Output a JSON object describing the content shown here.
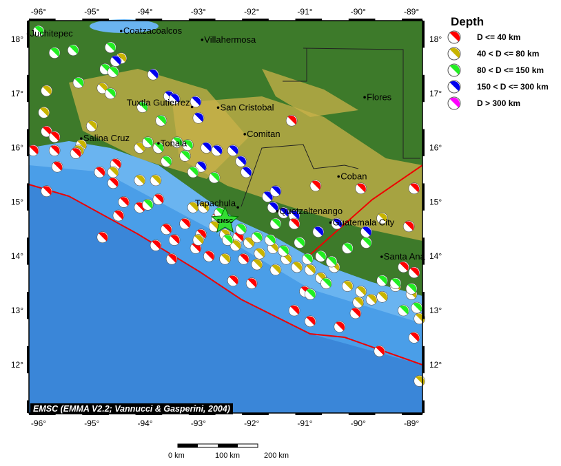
{
  "legend": {
    "title": "Depth",
    "items": [
      {
        "label": "D <= 40 km",
        "color": "#ff0000"
      },
      {
        "label": "40 < D <= 80 km",
        "color": "#c8b400"
      },
      {
        "label": "80 < D <= 150 km",
        "color": "#22ee22"
      },
      {
        "label": "150 < D <= 300 km",
        "color": "#0000ee"
      },
      {
        "label": "D > 300 km",
        "color": "#ff00ff"
      }
    ]
  },
  "credit": "EMSC (EMMA V2.2; Vannucci & Gasperini, 2004)",
  "star_label": "EMSC",
  "lon_ticks": [
    "-96°",
    "-95°",
    "-94°",
    "-93°",
    "-92°",
    "-91°",
    "-90°",
    "-89°"
  ],
  "lat_ticks": [
    "18°",
    "17°",
    "16°",
    "15°",
    "14°",
    "13°",
    "12°"
  ],
  "cities": [
    {
      "name": "Juchitepec",
      "lon": -96.2,
      "lat": 18.1
    },
    {
      "name": "Coatzacoalcos",
      "lon": -94.45,
      "lat": 18.15
    },
    {
      "name": "Villahermosa",
      "lon": -92.93,
      "lat": 17.99
    },
    {
      "name": "Flores",
      "lon": -89.88,
      "lat": 16.93
    },
    {
      "name": "Tuxtla Gutierrez",
      "lon": -93.12,
      "lat": 16.75
    },
    {
      "name": "San Cristobal",
      "lon": -92.63,
      "lat": 16.74
    },
    {
      "name": "Comitan",
      "lon": -92.13,
      "lat": 16.25
    },
    {
      "name": "Salina Cruz",
      "lon": -95.2,
      "lat": 16.17
    },
    {
      "name": "Tonala",
      "lon": -93.75,
      "lat": 16.08
    },
    {
      "name": "Coban",
      "lon": -90.37,
      "lat": 15.47
    },
    {
      "name": "Tapachula",
      "lon": -92.26,
      "lat": 14.9
    },
    {
      "name": "Quetzaltenango",
      "lon": -91.52,
      "lat": 14.83
    },
    {
      "name": "Guatemala City",
      "lon": -90.52,
      "lat": 14.62
    },
    {
      "name": "Santa Ana",
      "lon": -89.56,
      "lat": 13.99
    }
  ],
  "scale_bar": {
    "labels": [
      "0 km",
      "100 km",
      "200 km"
    ]
  },
  "events": [
    [
      -96,
      18.15,
      2
    ],
    [
      -95.7,
      17.75,
      2
    ],
    [
      -95.35,
      17.8,
      2
    ],
    [
      -94.65,
      17.85,
      2
    ],
    [
      -94.45,
      17.65,
      1
    ],
    [
      -94.55,
      17.6,
      3
    ],
    [
      -93.85,
      17.35,
      3
    ],
    [
      -94.75,
      17.45,
      2
    ],
    [
      -94.6,
      17.4,
      2
    ],
    [
      -95.25,
      17.2,
      2
    ],
    [
      -94.8,
      17.1,
      1
    ],
    [
      -94.65,
      17.0,
      2
    ],
    [
      -95.85,
      17.05,
      1
    ],
    [
      -93.55,
      16.95,
      3
    ],
    [
      -93.45,
      16.9,
      3
    ],
    [
      -93.05,
      16.85,
      3
    ],
    [
      -94.05,
      16.75,
      2
    ],
    [
      -95.9,
      16.65,
      1
    ],
    [
      -93.0,
      16.55,
      3
    ],
    [
      -93.7,
      16.5,
      2
    ],
    [
      -95.0,
      16.4,
      1
    ],
    [
      -91.25,
      16.5,
      0
    ],
    [
      -95.85,
      16.3,
      0
    ],
    [
      -95.7,
      16.2,
      0
    ],
    [
      -95.2,
      16.05,
      1
    ],
    [
      -95.25,
      15.95,
      1
    ],
    [
      -94.1,
      16.0,
      1
    ],
    [
      -93.95,
      16.1,
      2
    ],
    [
      -93.75,
      16.0,
      2
    ],
    [
      -93.4,
      16.1,
      2
    ],
    [
      -93.2,
      16.05,
      2
    ],
    [
      -92.85,
      16.0,
      3
    ],
    [
      -92.65,
      15.95,
      3
    ],
    [
      -92.35,
      15.95,
      3
    ],
    [
      -92.2,
      15.75,
      3
    ],
    [
      -93.25,
      15.85,
      2
    ],
    [
      -93.6,
      15.75,
      2
    ],
    [
      -92.95,
      15.65,
      3
    ],
    [
      -93.1,
      15.55,
      2
    ],
    [
      -92.7,
      15.45,
      2
    ],
    [
      -92.1,
      15.55,
      3
    ],
    [
      -93.8,
      15.4,
      1
    ],
    [
      -96.1,
      15.95,
      0
    ],
    [
      -95.7,
      15.95,
      0
    ],
    [
      -95.3,
      15.9,
      0
    ],
    [
      -95.65,
      15.65,
      0
    ],
    [
      -94.85,
      15.55,
      0
    ],
    [
      -94.55,
      15.7,
      0
    ],
    [
      -94.6,
      15.35,
      0
    ],
    [
      -95.85,
      15.2,
      0
    ],
    [
      -94.6,
      15.55,
      1
    ],
    [
      -94.1,
      15.4,
      1
    ],
    [
      -91.7,
      15.1,
      3
    ],
    [
      -91.55,
      15.2,
      3
    ],
    [
      -91.6,
      14.9,
      3
    ],
    [
      -91.4,
      14.8,
      3
    ],
    [
      -91.2,
      14.75,
      3
    ],
    [
      -90.75,
      14.45,
      3
    ],
    [
      -90.4,
      14.6,
      3
    ],
    [
      -89.85,
      14.45,
      3
    ],
    [
      -89.55,
      14.7,
      1
    ],
    [
      -90.8,
      15.3,
      0
    ],
    [
      -89.95,
      15.25,
      0
    ],
    [
      -88.95,
      15.25,
      0
    ],
    [
      -89.05,
      14.55,
      0
    ],
    [
      -94.4,
      15.0,
      0
    ],
    [
      -94.1,
      14.9,
      0
    ],
    [
      -93.75,
      15.05,
      0
    ],
    [
      -93.6,
      14.5,
      0
    ],
    [
      -93.25,
      14.6,
      0
    ],
    [
      -92.95,
      14.4,
      0
    ],
    [
      -92.65,
      14.7,
      0
    ],
    [
      -93.45,
      14.3,
      0
    ],
    [
      -93.05,
      14.15,
      0
    ],
    [
      -92.8,
      14.0,
      0
    ],
    [
      -93.8,
      14.2,
      0
    ],
    [
      -94.5,
      14.75,
      0
    ],
    [
      -94.8,
      14.35,
      0
    ],
    [
      -93.5,
      13.95,
      0
    ],
    [
      -92.25,
      14.35,
      0
    ],
    [
      -92.15,
      13.95,
      0
    ],
    [
      -92.35,
      13.55,
      0
    ],
    [
      -92.0,
      13.5,
      0
    ],
    [
      -91.2,
      14.6,
      0
    ],
    [
      -91.2,
      13.0,
      0
    ],
    [
      -90.9,
      12.8,
      0
    ],
    [
      -90.35,
      12.7,
      0
    ],
    [
      -89.6,
      12.25,
      0
    ],
    [
      -88.95,
      12.5,
      0
    ],
    [
      -89.15,
      13.8,
      0
    ],
    [
      -88.95,
      13.7,
      0
    ],
    [
      -90.05,
      12.95,
      0
    ],
    [
      -91.0,
      13.35,
      0
    ],
    [
      -93.1,
      14.9,
      1
    ],
    [
      -92.9,
      14.9,
      1
    ],
    [
      -92.7,
      14.55,
      1
    ],
    [
      -92.5,
      14.4,
      1
    ],
    [
      -92.3,
      14.2,
      1
    ],
    [
      -92.05,
      14.25,
      1
    ],
    [
      -91.85,
      14.05,
      1
    ],
    [
      -91.6,
      14.15,
      1
    ],
    [
      -91.35,
      13.95,
      1
    ],
    [
      -91.15,
      13.8,
      1
    ],
    [
      -90.9,
      13.75,
      1
    ],
    [
      -90.7,
      13.6,
      1
    ],
    [
      -90.45,
      13.8,
      1
    ],
    [
      -90.2,
      13.45,
      1
    ],
    [
      -89.95,
      13.35,
      1
    ],
    [
      -89.75,
      13.2,
      1
    ],
    [
      -89.55,
      13.25,
      1
    ],
    [
      -89.3,
      13.45,
      1
    ],
    [
      -89.0,
      13.3,
      1
    ],
    [
      -88.85,
      12.85,
      1
    ],
    [
      -88.85,
      11.7,
      1
    ],
    [
      -91.9,
      13.85,
      1
    ],
    [
      -92.5,
      13.95,
      1
    ],
    [
      -93.0,
      14.3,
      1
    ],
    [
      -91.55,
      13.75,
      1
    ],
    [
      -90.0,
      13.15,
      1
    ],
    [
      -92.45,
      14.3,
      2
    ],
    [
      -92.2,
      14.5,
      2
    ],
    [
      -91.9,
      14.35,
      2
    ],
    [
      -91.65,
      14.3,
      2
    ],
    [
      -91.4,
      14.1,
      2
    ],
    [
      -91.1,
      14.25,
      2
    ],
    [
      -90.95,
      13.95,
      2
    ],
    [
      -90.7,
      14.0,
      2
    ],
    [
      -90.5,
      13.9,
      2
    ],
    [
      -90.2,
      14.15,
      2
    ],
    [
      -89.85,
      14.25,
      2
    ],
    [
      -89.55,
      13.55,
      2
    ],
    [
      -89.3,
      13.5,
      2
    ],
    [
      -89.0,
      13.4,
      2
    ],
    [
      -88.9,
      13.05,
      2
    ],
    [
      -90.9,
      13.3,
      2
    ],
    [
      -91.55,
      14.6,
      2
    ],
    [
      -92.6,
      14.8,
      2
    ],
    [
      -93.95,
      14.95,
      2
    ],
    [
      -89.15,
      13.0,
      2
    ],
    [
      -90.6,
      13.5,
      2
    ]
  ]
}
